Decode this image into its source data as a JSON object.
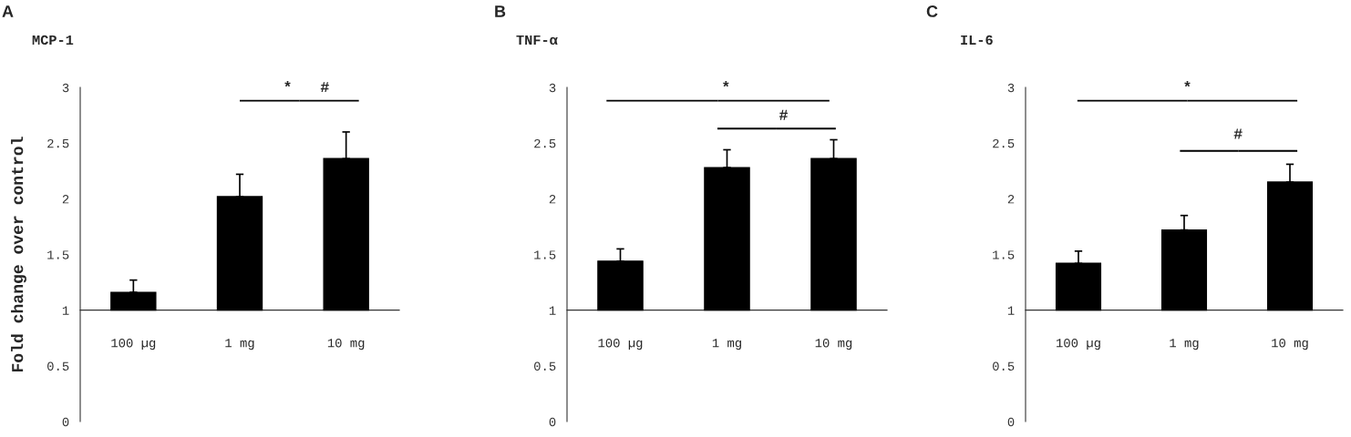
{
  "chart_data": [
    {
      "type": "bar",
      "title": "MCP-1",
      "ylabel": "Fold change over control",
      "categories": [
        "100 µg",
        "1 mg",
        "10 mg"
      ],
      "base": [
        1,
        1,
        1
      ],
      "values": [
        0.16,
        1.02,
        1.36
      ],
      "errors": [
        [
          1.16,
          1.27
        ],
        [
          2.02,
          2.22
        ],
        [
          2.36,
          2.6
        ]
      ],
      "color": "#000000",
      "ylim": [
        0,
        3
      ],
      "yticks": [
        0,
        0.5,
        1,
        1.5,
        2,
        2.5,
        3
      ],
      "grid": false,
      "legend": false,
      "annotations": [
        "A",
        "*",
        "#"
      ]
    },
    {
      "type": "bar",
      "title": "TNF-α",
      "categories": [
        "100 µg",
        "1 mg",
        "10 mg"
      ],
      "base": [
        1,
        1,
        1
      ],
      "values": [
        0.44,
        1.28,
        1.36
      ],
      "errors": [
        [
          1.44,
          1.55
        ],
        [
          2.28,
          2.44
        ],
        [
          2.36,
          2.53
        ]
      ],
      "color": "#000000",
      "ylim": [
        0,
        3
      ],
      "yticks": [
        0,
        0.5,
        1,
        1.5,
        2,
        2.5,
        3
      ],
      "grid": false,
      "legend": false,
      "annotations": [
        "B",
        "*",
        "#"
      ]
    },
    {
      "type": "bar",
      "title": "IL-6",
      "categories": [
        "100 µg",
        "1 mg",
        "10 mg"
      ],
      "base": [
        1,
        1,
        1
      ],
      "values": [
        0.42,
        0.72,
        1.15
      ],
      "errors": [
        [
          1.42,
          1.53
        ],
        [
          1.72,
          1.85
        ],
        [
          2.15,
          2.31
        ]
      ],
      "color": "#000000",
      "ylim": [
        0,
        3
      ],
      "yticks": [
        0,
        0.5,
        1,
        1.5,
        2,
        2.5,
        3
      ],
      "grid": false,
      "legend": false,
      "annotations": [
        "C",
        "*",
        "#"
      ]
    }
  ]
}
